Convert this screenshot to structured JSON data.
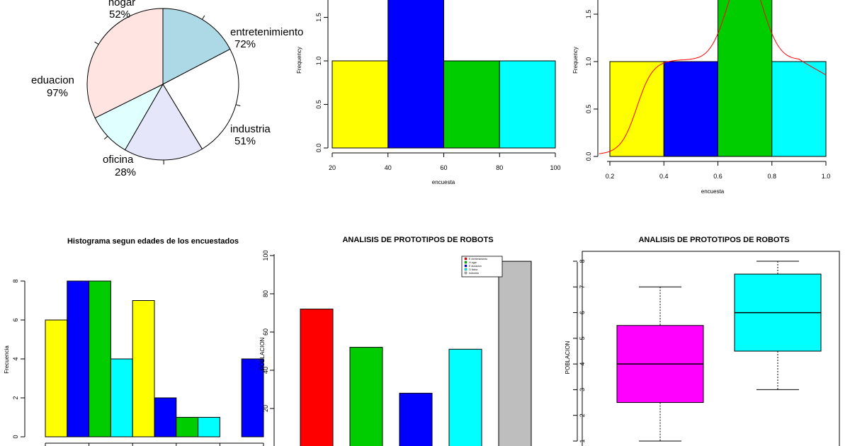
{
  "chart_data": [
    {
      "type": "pie",
      "labels": [
        {
          "name": "hogar",
          "pct": "52%"
        },
        {
          "name": "entretenimiento",
          "pct": "72%"
        },
        {
          "name": "industria",
          "pct": "51%"
        },
        {
          "name": "oficina",
          "pct": "28%"
        },
        {
          "name": "eduacion",
          "pct": "97%"
        }
      ],
      "values": [
        52,
        72,
        51,
        28,
        97
      ],
      "colors": [
        "#add8e6",
        "#ffffff",
        "#e6e6fa",
        "#e0ffff",
        "#ffe4e1"
      ]
    },
    {
      "type": "histogram",
      "xlabel": "encuesta",
      "ylabel": "Frequency",
      "bins": [
        [
          20,
          40
        ],
        [
          40,
          60
        ],
        [
          60,
          80
        ],
        [
          80,
          100
        ]
      ],
      "values": [
        1,
        2,
        1,
        1
      ],
      "colors": [
        "#ffff00",
        "#0000ff",
        "#00cd00",
        "#00ffff"
      ],
      "xticks": [
        "20",
        "40",
        "60",
        "80",
        "100"
      ],
      "yticks": [
        "0.0",
        "0.5",
        "1.0",
        "1.5"
      ],
      "xlim": [
        20,
        100
      ],
      "ylim": [
        0,
        2
      ]
    },
    {
      "type": "histogram",
      "xlabel": "encuesta",
      "ylabel": "Frequency",
      "bins": [
        [
          0.2,
          0.4
        ],
        [
          0.4,
          0.6
        ],
        [
          0.6,
          0.8
        ],
        [
          0.8,
          1.0
        ]
      ],
      "values": [
        1,
        1,
        2,
        1
      ],
      "colors": [
        "#ffff00",
        "#0000ff",
        "#00cd00",
        "#00ffff"
      ],
      "density_line_color": "#ff0000",
      "xticks": [
        "0.2",
        "0.4",
        "0.6",
        "0.8",
        "1.0"
      ],
      "yticks": [
        "0.0",
        "0.5",
        "1.0",
        "1.5"
      ],
      "xlim": [
        0.2,
        1.0
      ],
      "ylim": [
        0,
        2
      ]
    },
    {
      "type": "bar",
      "title": "Histograma segun edades de los encuestados",
      "ylabel": "Frecuencia",
      "values": [
        6,
        8,
        8,
        4,
        7,
        2,
        1,
        1,
        0,
        4
      ],
      "colors": [
        "#ffff00",
        "#0000ff",
        "#00cd00",
        "#00ffff",
        "#ffff00",
        "#0000ff",
        "#00cd00",
        "#00ffff",
        "#ffff00",
        "#0000ff"
      ],
      "yticks": [
        "0",
        "2",
        "4",
        "6",
        "8"
      ],
      "ylim": [
        0,
        8
      ]
    },
    {
      "type": "bar",
      "title": "ANALISIS DE PROTOTIPOS DE ROBOTS",
      "ylabel": "POBLACION",
      "values": [
        72,
        52,
        28,
        51,
        97
      ],
      "colors": [
        "#ff0000",
        "#00cd00",
        "#0000ff",
        "#00ffff",
        "#bebebe"
      ],
      "legend": [
        "E ntretenimiento",
        "H ogar",
        "E ducacion",
        "O ficina",
        "Industria"
      ],
      "legend_position": "top-right",
      "yticks": [
        "20",
        "40",
        "60",
        "80",
        "100"
      ],
      "ylim": [
        0,
        100
      ]
    },
    {
      "type": "box",
      "title": "ANALISIS DE PROTOTIPOS DE ROBOTS",
      "ylabel": "POBLACION",
      "boxes": [
        {
          "min": 1,
          "q1": 2.5,
          "median": 4,
          "q3": 5.5,
          "max": 7,
          "color": "#ff00ff"
        },
        {
          "min": 3,
          "q1": 4.5,
          "median": 6,
          "q3": 7.5,
          "max": 8,
          "color": "#00ffff"
        }
      ],
      "yticks": [
        "1",
        "2",
        "3",
        "4",
        "5",
        "6",
        "7",
        "8"
      ],
      "ylim": [
        1,
        8
      ]
    }
  ]
}
